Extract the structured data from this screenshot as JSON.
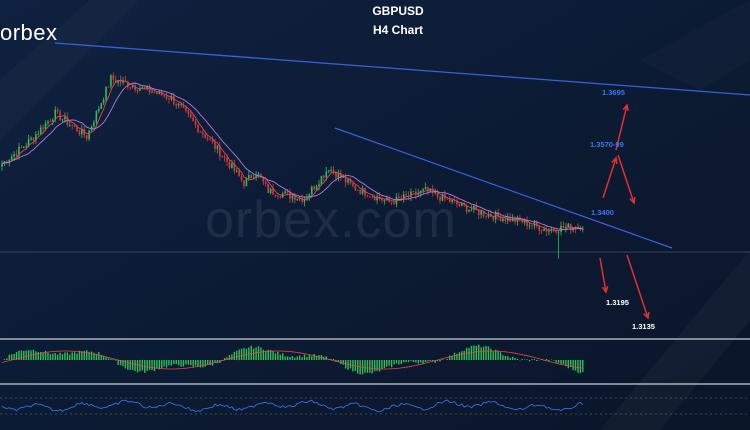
{
  "header": {
    "symbol": "GBPUSD",
    "timeframe": "H4 Chart"
  },
  "brand": {
    "logo_text": "orbex",
    "watermark": "orbex.com"
  },
  "colors": {
    "background": "#0d1b33",
    "bull_candle": "#2fbf54",
    "bear_candle": "#d43b3b",
    "ma_fast": "#e04a4a",
    "ma_slow": "#b07ad9",
    "trendline": "#3a5fe0",
    "support_line": "#9aa4b6",
    "arrow": "#e23030",
    "upper_target_label": "#3a78f0",
    "lower_target_label": "#ffffff",
    "macd_histogram": "#2fbf54",
    "oscillator": "#3a78f0"
  },
  "chart_data": {
    "type": "candlestick",
    "symbol": "GBPUSD",
    "timeframe": "H4",
    "ylim": [
      1.31,
      1.385
    ],
    "close_path": {
      "bar_index": [
        0,
        10,
        22,
        35,
        45,
        55,
        70,
        80,
        90,
        100,
        105,
        110,
        125,
        135,
        145,
        160,
        175,
        190,
        200,
        215,
        225,
        240
      ],
      "price": [
        1.353,
        1.358,
        1.366,
        1.36,
        1.375,
        1.373,
        1.37,
        1.363,
        1.356,
        1.348,
        1.351,
        1.346,
        1.344,
        1.352,
        1.347,
        1.343,
        1.346,
        1.342,
        1.34,
        1.338,
        1.336,
        1.337
      ]
    },
    "indicators": [
      "moving average (fast)",
      "moving average (slow)",
      "MACD histogram",
      "oscillator"
    ],
    "annotations": [
      {
        "text": "1.3695",
        "price": 1.3695
      },
      {
        "text": "1.3570-99",
        "price": 1.3585
      },
      {
        "text": "1.3400",
        "price": 1.34
      },
      {
        "text": "1.3195",
        "price": 1.3195
      },
      {
        "text": "1.3135",
        "price": 1.3135
      }
    ],
    "trendlines": [
      "descending long-term resistance",
      "descending short-term resistance",
      "horizontal support"
    ],
    "projections": [
      "bounce from 1.3400 towards 1.3570-99 then 1.3695",
      "drop from 1.3400 towards 1.3195 then 1.3135"
    ]
  }
}
